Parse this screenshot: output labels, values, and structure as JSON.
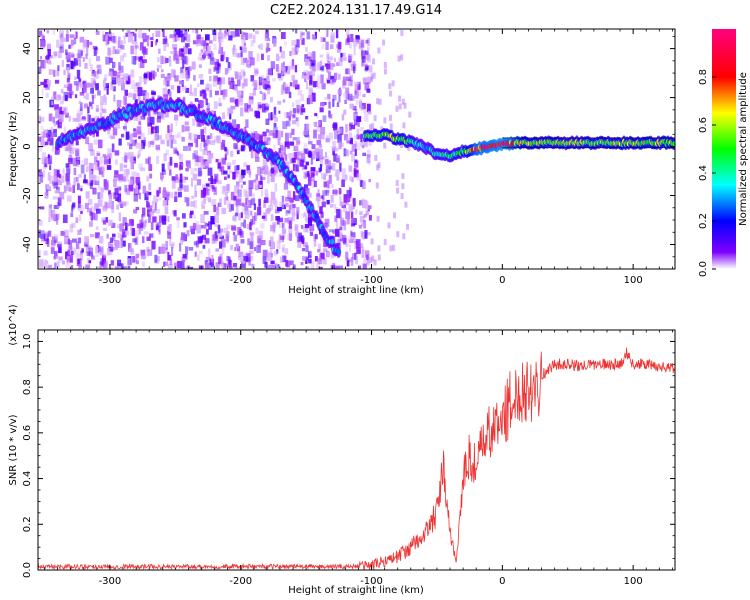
{
  "title": "C2E2.2024.131.17.49.G14",
  "chart_data": [
    {
      "type": "heatmap",
      "name": "spectrogram",
      "xlabel": "Height of straight line (km)",
      "ylabel": "Frequency (Hz)",
      "xlim": [
        -355,
        132
      ],
      "ylim": [
        -50,
        48
      ],
      "xticks": [
        -300,
        -200,
        -100,
        0,
        100
      ],
      "xtick_labels": [
        "-300",
        "-200",
        "-100",
        "0",
        "100"
      ],
      "yticks": [
        -40,
        -20,
        0,
        20,
        40
      ],
      "ytick_labels": [
        "-40",
        "-20",
        "0",
        "20",
        "40"
      ],
      "noise_region_x": [
        -355,
        -102
      ],
      "colorbar": {
        "label": "Normalized spectral amplitude",
        "range": [
          0,
          1
        ],
        "ticks": [
          0.0,
          0.2,
          0.4,
          0.6,
          0.8
        ],
        "tick_labels": [
          "0.0",
          "0.2",
          "0.4",
          "0.6",
          "0.8"
        ],
        "colors": [
          "#ffffff",
          "#7f00ff",
          "#0000ff",
          "#00ffff",
          "#00ff00",
          "#ffff00",
          "#ff0000",
          "#ff007f"
        ]
      },
      "series": [
        {
          "name": "arc-track",
          "x": [
            -340,
            -325,
            -310,
            -295,
            -280,
            -265,
            -250,
            -235,
            -220,
            -205,
            -190,
            -175,
            -165,
            -155,
            -145,
            -135,
            -125
          ],
          "y": [
            2,
            5,
            8,
            12,
            15,
            17,
            17,
            14,
            10,
            6,
            1,
            -4,
            -10,
            -18,
            -27,
            -36,
            -44
          ],
          "amplitude": 0.3
        },
        {
          "name": "carrier-track",
          "x": [
            -105,
            -90,
            -80,
            -70,
            -60,
            -50,
            -40,
            -30,
            -20,
            -10,
            0,
            10,
            20,
            40,
            60,
            80,
            100,
            132
          ],
          "y": [
            4,
            5,
            3,
            2,
            0,
            -3,
            -4,
            -2,
            -1,
            0,
            1,
            1.5,
            1.5,
            1.5,
            1.5,
            1.5,
            1.5,
            1.5
          ],
          "amplitude": [
            0.5,
            0.55,
            0.6,
            0.45,
            0.35,
            0.4,
            0.45,
            0.5,
            0.85,
            0.9,
            0.95,
            0.8,
            0.6,
            0.55,
            0.55,
            0.55,
            0.6,
            0.6
          ]
        }
      ]
    },
    {
      "type": "line",
      "name": "snr",
      "xlabel": "Height of straight line (km)",
      "ylabel": "SNR (10 * v/v)",
      "y_multiplier": "(x10^4)",
      "xlim": [
        -355,
        132
      ],
      "ylim": [
        0,
        1.05
      ],
      "xticks": [
        -300,
        -200,
        -100,
        0,
        100
      ],
      "xtick_labels": [
        "-300",
        "-200",
        "-100",
        "0",
        "100"
      ],
      "yticks": [
        0.0,
        0.2,
        0.4,
        0.6,
        0.8,
        1.0
      ],
      "ytick_labels": [
        "0.0",
        "0.2",
        "0.4",
        "0.6",
        "0.8",
        "1.0"
      ],
      "series": [
        {
          "name": "SNR",
          "color": "#ee3333",
          "x": [
            -355,
            -300,
            -200,
            -120,
            -100,
            -90,
            -80,
            -70,
            -60,
            -50,
            -45,
            -40,
            -35,
            -30,
            -25,
            -20,
            -15,
            -10,
            -5,
            0,
            5,
            10,
            15,
            20,
            25,
            30,
            40,
            50,
            60,
            70,
            80,
            90,
            95,
            100,
            110,
            120,
            132
          ],
          "y": [
            0.015,
            0.015,
            0.015,
            0.015,
            0.02,
            0.04,
            0.06,
            0.1,
            0.15,
            0.25,
            0.45,
            0.15,
            0.05,
            0.4,
            0.5,
            0.45,
            0.55,
            0.6,
            0.62,
            0.66,
            0.72,
            0.75,
            0.8,
            0.8,
            0.82,
            0.85,
            0.9,
            0.9,
            0.89,
            0.9,
            0.9,
            0.9,
            0.95,
            0.9,
            0.9,
            0.89,
            0.88
          ]
        }
      ]
    }
  ]
}
